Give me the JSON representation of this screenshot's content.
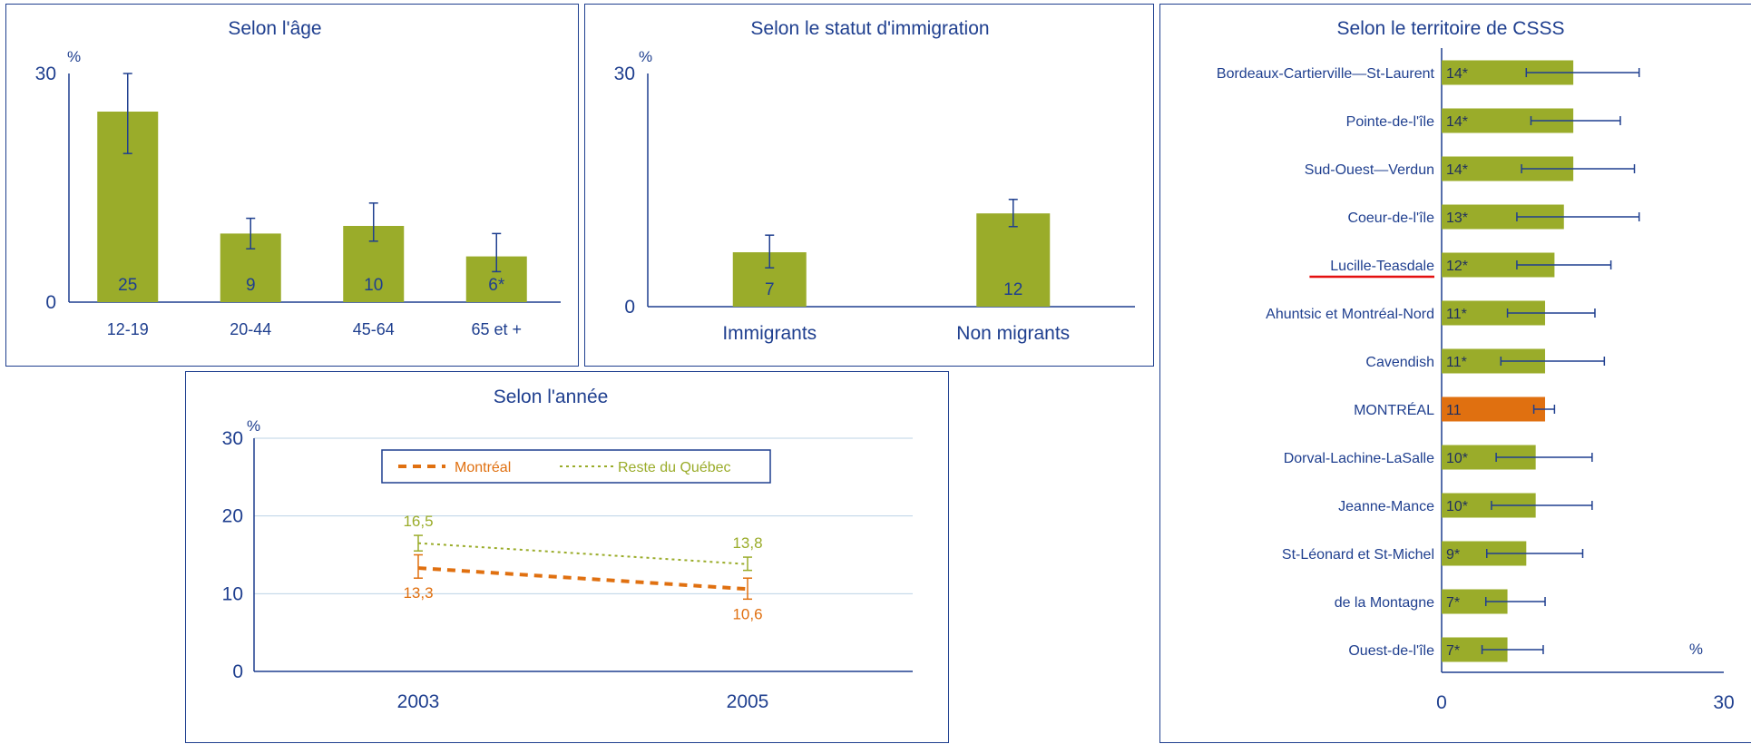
{
  "colors": {
    "bar": "#9aac2a",
    "montreal_bar": "#e07010",
    "axis": "#1f3f8f",
    "text": "#1f3f8f",
    "grid": "#bcd3e6",
    "series_montreal": "#e07010",
    "series_reste": "#9aac2a"
  },
  "chart_data": [
    {
      "type": "bar",
      "title": "Selon l'âge",
      "unit_label": "%",
      "ylim": [
        0,
        30
      ],
      "yticks": [
        "0",
        "30"
      ],
      "categories": [
        "12-19",
        "20-44",
        "45-64",
        "65  et +"
      ],
      "values": [
        25,
        9,
        10,
        6
      ],
      "value_labels": [
        "25",
        "9",
        "10",
        "6*"
      ],
      "error_low": [
        19.5,
        7,
        8,
        4
      ],
      "error_high": [
        30,
        11,
        13,
        9
      ]
    },
    {
      "type": "bar",
      "title": "Selon le statut d'immigration",
      "unit_label": "%",
      "ylim": [
        0,
        30
      ],
      "yticks": [
        "0",
        "30"
      ],
      "categories": [
        "Immigrants",
        "Non migrants"
      ],
      "values": [
        7,
        12
      ],
      "value_labels": [
        "7",
        "12"
      ],
      "error_low": [
        5,
        10.3
      ],
      "error_high": [
        9.2,
        13.8
      ]
    },
    {
      "type": "line",
      "title": "Selon l'année",
      "unit_label": "%",
      "ylim": [
        0,
        30
      ],
      "yticks": [
        "0",
        "10",
        "20",
        "30"
      ],
      "x": [
        "2003",
        "2005"
      ],
      "grid": true,
      "legend_position": "top",
      "series": [
        {
          "name": "Montréal",
          "values": [
            13.3,
            10.6
          ],
          "value_labels": [
            "13,3",
            "10,6"
          ],
          "error_low": [
            12,
            9.3
          ],
          "error_high": [
            15,
            12
          ]
        },
        {
          "name": "Reste du Québec",
          "values": [
            16.5,
            13.8
          ],
          "value_labels": [
            "16,5",
            "13,8"
          ],
          "error_low": [
            15.5,
            13
          ],
          "error_high": [
            17.5,
            14.7
          ]
        }
      ]
    },
    {
      "type": "bar",
      "orientation": "horizontal",
      "title": "Selon le territoire de CSSS",
      "unit_label": "%",
      "xlim": [
        0,
        30
      ],
      "xticks": [
        "0",
        "30"
      ],
      "highlighted_category": "Lucille-Teasdale",
      "reference_category": "MONTRÉAL",
      "categories": [
        "Bordeaux-Cartierville—St-Laurent",
        "Pointe-de-l'île",
        "Sud-Ouest—Verdun",
        "Coeur-de-l'île",
        "Lucille-Teasdale",
        "Ahuntsic et Montréal-Nord",
        "Cavendish",
        "MONTRÉAL",
        "Dorval-Lachine-LaSalle",
        "Jeanne-Mance",
        "St-Léonard et St-Michel",
        "de la Montagne",
        "Ouest-de-l'île"
      ],
      "values": [
        14,
        14,
        14,
        13,
        12,
        11,
        11,
        11,
        10,
        10,
        9,
        7,
        7
      ],
      "value_labels": [
        "14*",
        "14*",
        "14*",
        "13*",
        "12*",
        "11*",
        "11*",
        "11",
        "10*",
        "10*",
        "9*",
        "7*",
        "7*"
      ],
      "error_low": [
        9,
        9.5,
        8.5,
        8,
        8,
        7,
        6.3,
        9.8,
        5.8,
        5.3,
        4.8,
        4.7,
        4.3
      ],
      "error_high": [
        21,
        19,
        20.5,
        21,
        18,
        16.3,
        17.3,
        12,
        16,
        16,
        15,
        11,
        10.8
      ]
    }
  ]
}
